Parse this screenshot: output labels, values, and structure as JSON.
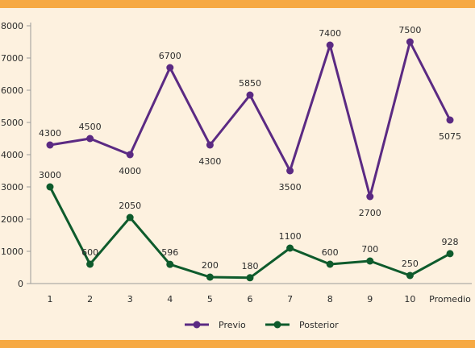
{
  "colors": {
    "background": "#fdf1df",
    "band": "#f6a943",
    "axis": "#9a9a9a",
    "previo": "#5b2a83",
    "posterior": "#0e5b2c"
  },
  "chart_data": {
    "type": "line",
    "categories": [
      "1",
      "2",
      "3",
      "4",
      "5",
      "6",
      "7",
      "8",
      "9",
      "10",
      "Promedio"
    ],
    "series": [
      {
        "name": "Previo",
        "values": [
          4300,
          4500,
          4000,
          6700,
          4300,
          5850,
          3500,
          7400,
          2700,
          7500,
          5075
        ],
        "labels": [
          "4300",
          "4500",
          "4000",
          "6700",
          "4300",
          "5850",
          "3500",
          "7400",
          "2700",
          "7500",
          "5075"
        ],
        "label_pos": [
          "above",
          "above",
          "below",
          "above",
          "below",
          "above",
          "below",
          "above",
          "below",
          "above",
          "below"
        ]
      },
      {
        "name": "Posterior",
        "values": [
          3000,
          600,
          2050,
          596,
          200,
          180,
          1100,
          600,
          700,
          250,
          928
        ],
        "labels": [
          "3000",
          "600",
          "2050",
          "596",
          "200",
          "180",
          "1100",
          "600",
          "700",
          "250",
          "928"
        ],
        "label_pos": [
          "above",
          "above",
          "above",
          "above",
          "above",
          "above",
          "above",
          "above",
          "above",
          "above",
          "above"
        ]
      }
    ],
    "ylim": [
      0,
      8000
    ],
    "yticks": [
      "0",
      "1000",
      "2000",
      "3000",
      "4000",
      "5000",
      "6000",
      "7000",
      "8000"
    ],
    "grid": false,
    "legend_position": "bottom"
  }
}
